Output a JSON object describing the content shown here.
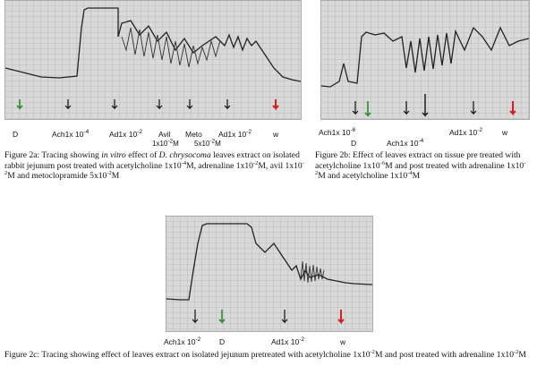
{
  "colors": {
    "black": "#111111",
    "green": "#2e8b2e",
    "red": "#d62020"
  },
  "fig2a": {
    "labels": {
      "d": "D",
      "ach": "Ach1x 10",
      "ach_exp": "-4",
      "ad": "Ad1x 10",
      "ad_exp": "-2",
      "avil": "Avil",
      "meto": "Meto",
      "ad2": "Ad1x 10",
      "ad2_exp": "-2",
      "w": "w",
      "avil_conc": "1x10",
      "avil_conc_exp": "-2",
      "avil_conc_unit": "M",
      "meto_conc": "5x10",
      "meto_conc_exp": "-2",
      "meto_conc_unit": "M"
    },
    "caption": {
      "t1": "Figure 2a: Tracing showing ",
      "t1_italic": "in vitro",
      "t2": " effect of ",
      "t2_italic": "D. chrysocoma",
      "t3": " leaves extract on isolated rabbit jejunum post treated with acetylcholine 1x10",
      "t3_exp": "-4",
      "t4": "M, adrenaline 1x10",
      "t4_exp": "-2",
      "t5": "M, avil 1x10",
      "t5_exp": "-2",
      "t6": "M and metoclopramide 5x10",
      "t6_exp": "-2",
      "t7": "M"
    }
  },
  "fig2b": {
    "labels": {
      "ach": "Ach1x 10",
      "ach_exp": "-6",
      "d": "D",
      "ach2": "Ach1x 10",
      "ach2_exp": "-4",
      "ad": "Ad1x 10",
      "ad_exp": "-2",
      "w": "w"
    },
    "caption": {
      "t1": "Figure 2b: Effect of leaves extract on tissue pre treated with acetylcholine 1x10",
      "t1_exp": "-6",
      "t2": "M and post treated with adrenaline 1x10",
      "t2_exp": "-2",
      "t3": "M and acetylcholine 1x10",
      "t3_exp": "-4",
      "t4": "M"
    }
  },
  "fig2c": {
    "labels": {
      "ach": "Ach1x 10",
      "ach_exp": "-2",
      "d": "D",
      "ad": "Ad1x 10",
      "ad_exp": "-2",
      "w": "w"
    },
    "caption": {
      "t1": "Figure 2c: Tracing showing effect of leaves extract on isolated jejunum pretreated with acetylcholine 1x10",
      "t1_exp": "-2",
      "t2": "M and post treated with adrenaline 1x10",
      "t2_exp": "-2",
      "t3": "M"
    }
  }
}
